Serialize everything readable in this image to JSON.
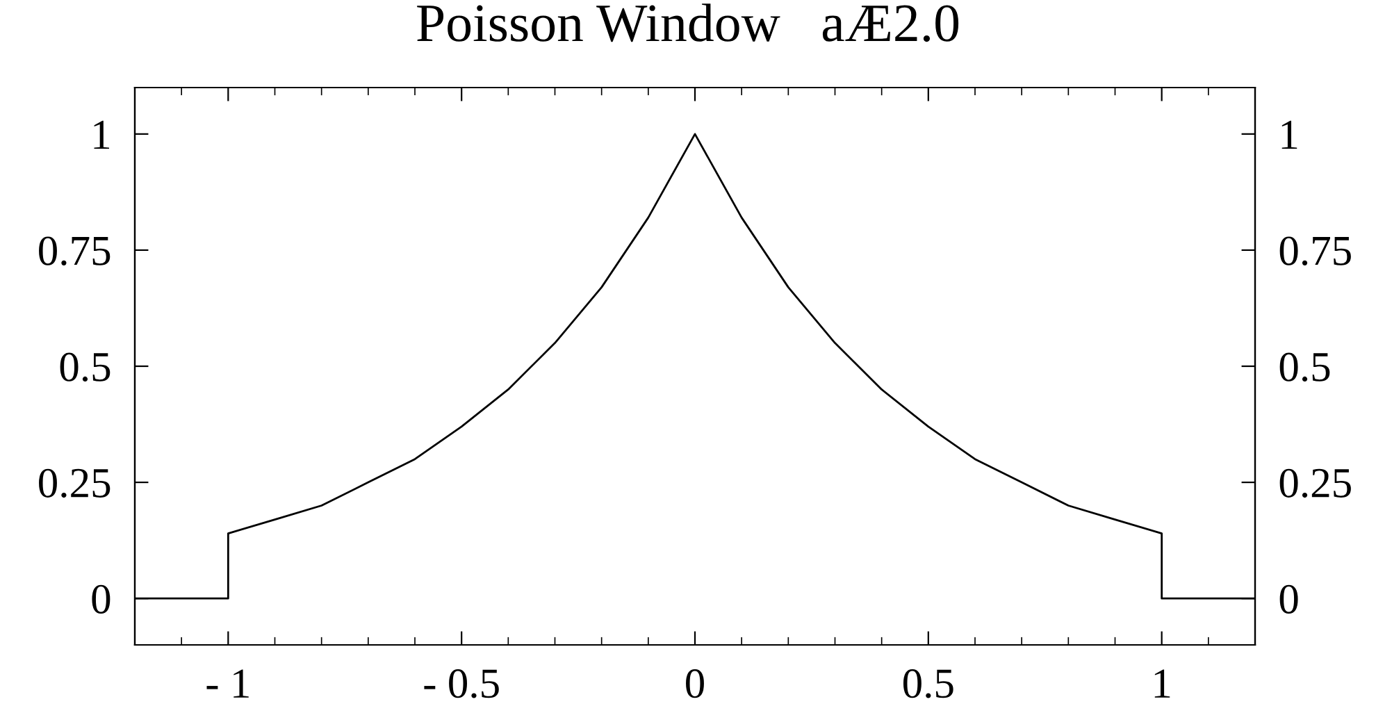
{
  "chart_data": {
    "type": "line",
    "title": "Poisson Window   aÆ2.0",
    "x": [
      -1.2,
      -1.0,
      -1.0,
      -0.9,
      -0.8,
      -0.7,
      -0.6,
      -0.5,
      -0.4,
      -0.3,
      -0.2,
      -0.1,
      0.0,
      0.1,
      0.2,
      0.3,
      0.4,
      0.5,
      0.6,
      0.7,
      0.8,
      0.9,
      1.0,
      1.0,
      1.2
    ],
    "series": [
      {
        "color": "#000000",
        "values": [
          0,
          0,
          0.14,
          0.17,
          0.2,
          0.25,
          0.3,
          0.37,
          0.45,
          0.55,
          0.67,
          0.82,
          1.0,
          0.82,
          0.67,
          0.55,
          0.45,
          0.37,
          0.3,
          0.25,
          0.2,
          0.17,
          0.14,
          0,
          0
        ]
      }
    ],
    "xlim": [
      -1.2,
      1.2
    ],
    "ylim": [
      -0.1,
      1.1
    ],
    "xticks": [
      -1,
      -0.5,
      0,
      0.5,
      1
    ],
    "yticks": [
      0,
      0.25,
      0.5,
      0.75,
      1
    ],
    "y2lim": [
      -0.1,
      1.1
    ],
    "y2ticks": [
      0,
      0.25,
      0.5,
      0.75,
      1
    ],
    "grid": false,
    "marker": "none",
    "line_style": "solid"
  }
}
